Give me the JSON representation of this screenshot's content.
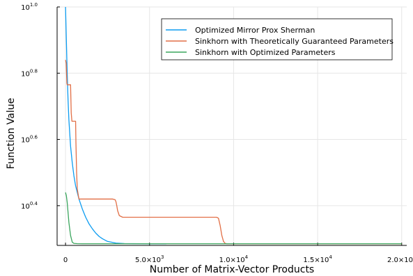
{
  "chart_data": {
    "type": "line",
    "title": "",
    "xlabel": "Number of Matrix-Vector Products",
    "ylabel": "Function Value",
    "xlim": [
      -500,
      20300
    ],
    "ylim": [
      0.28,
      1.0
    ],
    "y_scale": "log10",
    "grid": true,
    "legend_position": "top-right",
    "x_ticks": [
      {
        "value": 0,
        "base": "0",
        "exp": ""
      },
      {
        "value": 5000,
        "base": "5.0×10",
        "exp": "3"
      },
      {
        "value": 10000,
        "base": "1.0×10",
        "exp": "4"
      },
      {
        "value": 15000,
        "base": "1.5×10",
        "exp": "4"
      },
      {
        "value": 20000,
        "base": "2.0×10",
        "exp": "4"
      }
    ],
    "y_ticks": [
      {
        "value": 0.4,
        "base": "10",
        "exp": "0.4"
      },
      {
        "value": 0.6,
        "base": "10",
        "exp": "0.6"
      },
      {
        "value": 0.8,
        "base": "10",
        "exp": "0.8"
      },
      {
        "value": 1.0,
        "base": "10",
        "exp": "1.0"
      }
    ],
    "series": [
      {
        "name": "Optimized Mirror Prox Sherman",
        "color": "#0c9cf1",
        "x": [
          0,
          50,
          100,
          150,
          200,
          300,
          400,
          500,
          600,
          800,
          1000,
          1200,
          1400,
          1600,
          1800,
          2000,
          2200,
          2500,
          3000,
          3500,
          4000,
          5000,
          6000
        ],
        "y": [
          1.0,
          0.9,
          0.8,
          0.72,
          0.66,
          0.58,
          0.53,
          0.49,
          0.46,
          0.42,
          0.39,
          0.365,
          0.345,
          0.33,
          0.317,
          0.307,
          0.3,
          0.292,
          0.287,
          0.2855,
          0.2852,
          0.285,
          0.285
        ]
      },
      {
        "name": "Sinkhorn with Theoretically Guaranteed Parameters",
        "color": "#e26f46",
        "x": [
          0,
          40,
          80,
          100,
          120,
          300,
          340,
          380,
          600,
          620,
          660,
          700,
          800,
          1000,
          2000,
          2800,
          2950,
          3000,
          3050,
          3100,
          3200,
          3400,
          5000,
          8000,
          9000,
          9100,
          9200,
          9300,
          9400,
          9500,
          9600,
          10000,
          12000,
          15000,
          20000
        ],
        "y": [
          0.84,
          0.83,
          0.77,
          0.765,
          0.765,
          0.765,
          0.68,
          0.655,
          0.655,
          0.59,
          0.5,
          0.45,
          0.42,
          0.42,
          0.42,
          0.42,
          0.418,
          0.412,
          0.4,
          0.385,
          0.37,
          0.365,
          0.365,
          0.365,
          0.365,
          0.362,
          0.34,
          0.31,
          0.292,
          0.286,
          0.285,
          0.285,
          0.285,
          0.285,
          0.285
        ]
      },
      {
        "name": "Sinkhorn with Optimized Parameters",
        "color": "#3aa55d",
        "x": [
          0,
          50,
          100,
          150,
          200,
          300,
          400,
          500,
          700,
          1000,
          2000,
          5000,
          10000,
          15000,
          20000
        ],
        "y": [
          0.44,
          0.43,
          0.41,
          0.38,
          0.35,
          0.31,
          0.29,
          0.286,
          0.2852,
          0.285,
          0.285,
          0.285,
          0.285,
          0.285,
          0.285
        ]
      }
    ]
  }
}
